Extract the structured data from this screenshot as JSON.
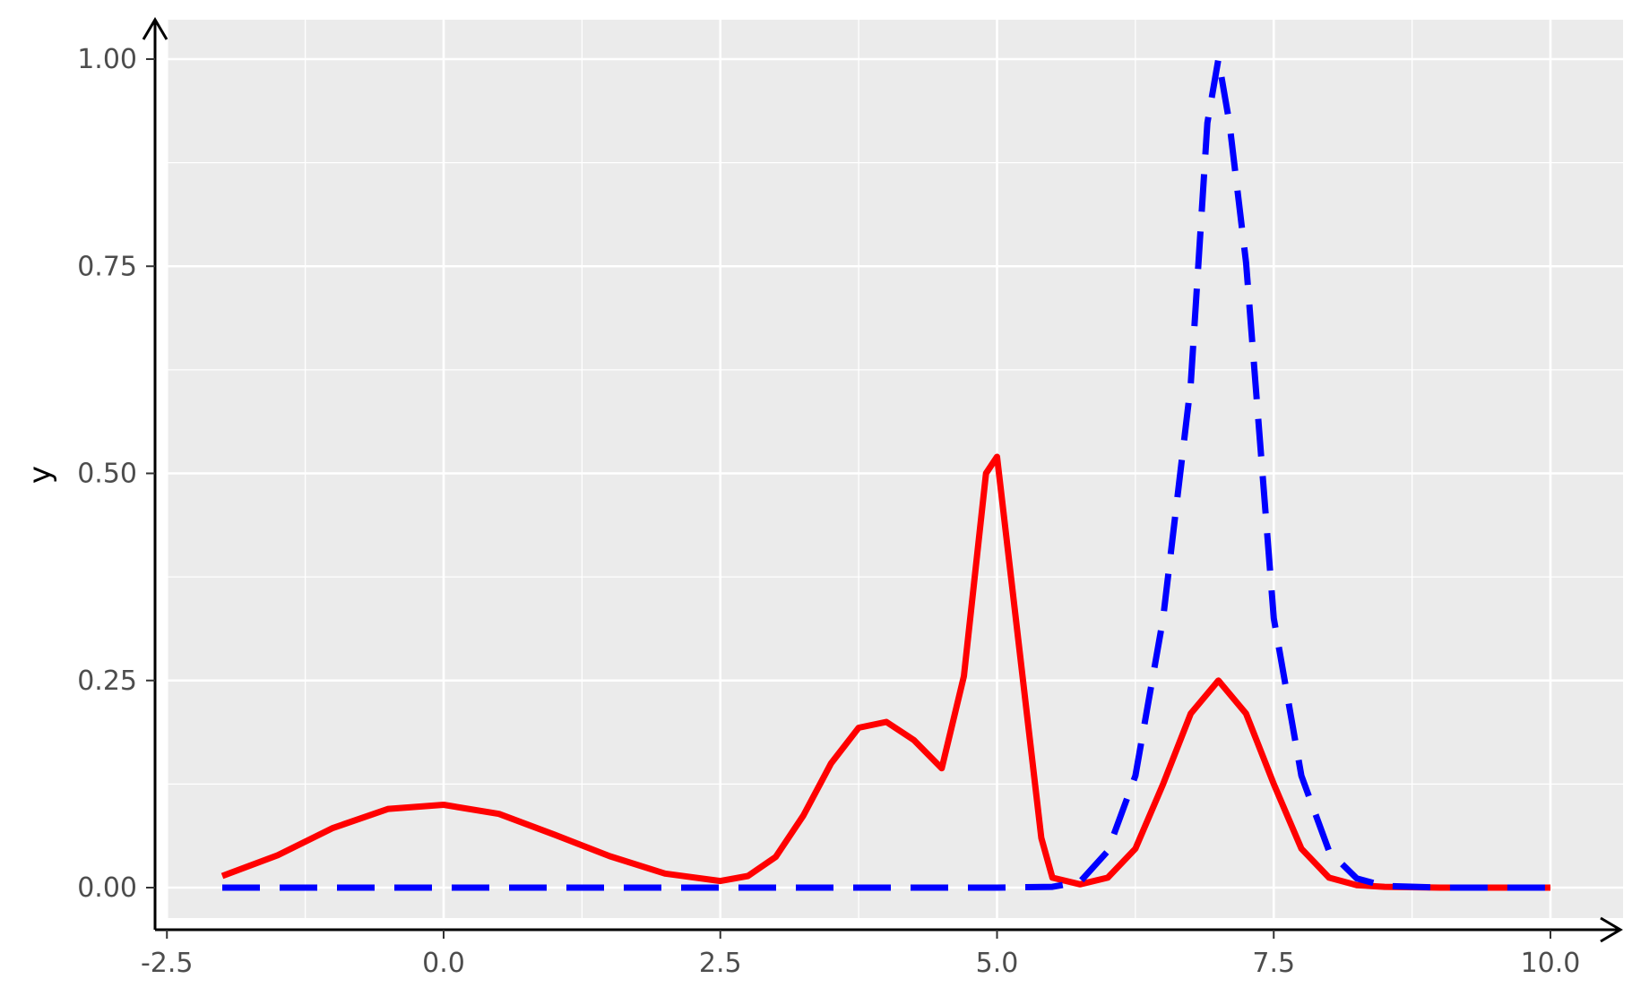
{
  "chart_data": {
    "type": "line",
    "xlabel": "",
    "ylabel": "y",
    "xlim": [
      -2.5,
      10.0
    ],
    "ylim": [
      0.0,
      1.0
    ],
    "grid": true,
    "x_ticks": [
      {
        "value": -2.5,
        "label": "-2.5"
      },
      {
        "value": 0.0,
        "label": "0.0"
      },
      {
        "value": 2.5,
        "label": "2.5"
      },
      {
        "value": 5.0,
        "label": "5.0"
      },
      {
        "value": 7.5,
        "label": "7.5"
      },
      {
        "value": 10.0,
        "label": "10.0"
      }
    ],
    "y_ticks": [
      {
        "value": 0.0,
        "label": "0.00"
      },
      {
        "value": 0.25,
        "label": "0.25"
      },
      {
        "value": 0.5,
        "label": "0.50"
      },
      {
        "value": 0.75,
        "label": "0.75"
      },
      {
        "value": 1.0,
        "label": "1.00"
      }
    ],
    "series": [
      {
        "color": "#ff0000",
        "style": "solid",
        "x": [
          -2.0,
          -1.5,
          -1.0,
          -0.5,
          0.0,
          0.5,
          1.0,
          1.5,
          2.0,
          2.5,
          2.75,
          3.0,
          3.25,
          3.5,
          3.75,
          4.0,
          4.25,
          4.5,
          4.7,
          4.9,
          5.0,
          5.2,
          5.4,
          5.5,
          5.75,
          6.0,
          6.25,
          6.5,
          6.75,
          7.0,
          7.25,
          7.5,
          7.75,
          8.0,
          8.25,
          8.5,
          9.0,
          10.0
        ],
        "y": [
          0.014,
          0.039,
          0.072,
          0.095,
          0.1,
          0.089,
          0.064,
          0.038,
          0.017,
          0.008,
          0.014,
          0.037,
          0.087,
          0.15,
          0.193,
          0.2,
          0.178,
          0.144,
          0.255,
          0.5,
          0.52,
          0.29,
          0.06,
          0.012,
          0.004,
          0.012,
          0.047,
          0.125,
          0.21,
          0.25,
          0.21,
          0.125,
          0.047,
          0.012,
          0.003,
          0.001,
          0.0,
          0.0
        ]
      },
      {
        "color": "#0000ff",
        "style": "dashed",
        "x": [
          -2.0,
          5.0,
          5.5,
          5.75,
          6.0,
          6.25,
          6.5,
          6.75,
          6.9,
          7.0,
          7.1,
          7.25,
          7.5,
          7.75,
          8.0,
          8.25,
          8.5,
          9.0,
          10.0
        ],
        "y": [
          0.0,
          0.0,
          0.001,
          0.007,
          0.044,
          0.135,
          0.325,
          0.607,
          0.923,
          1.0,
          0.923,
          0.754,
          0.325,
          0.135,
          0.044,
          0.011,
          0.002,
          0.0,
          0.0
        ]
      }
    ]
  }
}
